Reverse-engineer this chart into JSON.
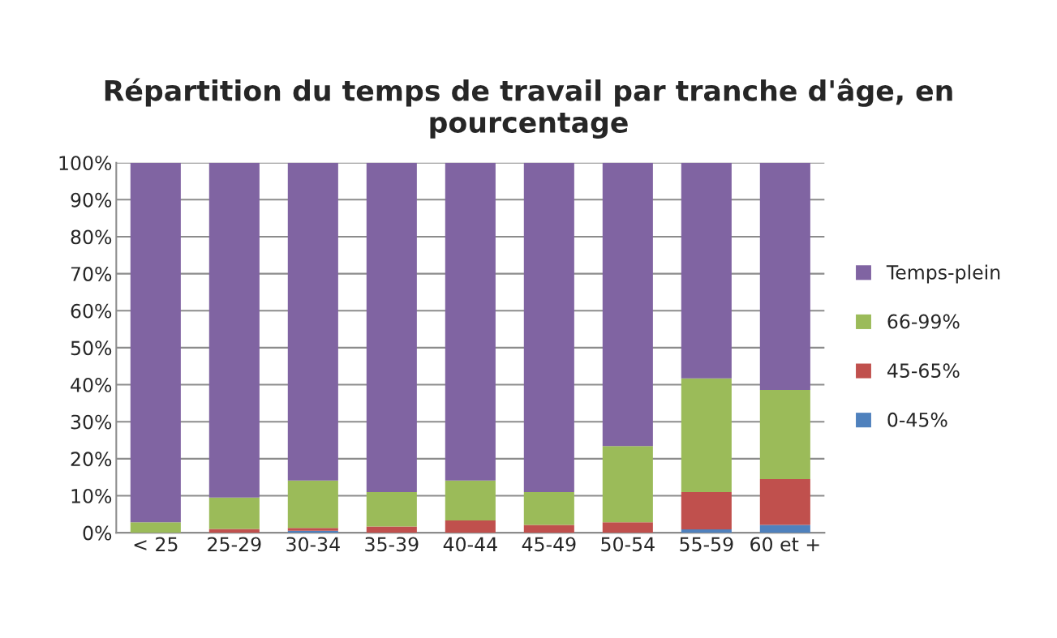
{
  "chart_data": {
    "type": "bar",
    "stacked": true,
    "title": "Répartition du temps de travail par tranche d'âge, en pourcentage",
    "categories": [
      "< 25",
      "25-29",
      "30-34",
      "35-39",
      "40-44",
      "45-49",
      "50-54",
      "55-59",
      "60 et +"
    ],
    "series": [
      {
        "name": "0-45%",
        "color": "#4f81bd",
        "values": [
          0,
          0,
          0.5,
          0,
          0,
          0,
          0,
          0.9,
          2.1
        ]
      },
      {
        "name": "45-65%",
        "color": "#c0504d",
        "values": [
          0,
          1.0,
          0.8,
          1.7,
          3.3,
          2.1,
          2.8,
          10.1,
          12.4
        ]
      },
      {
        "name": "66-99%",
        "color": "#9bbb59",
        "values": [
          2.8,
          8.5,
          12.8,
          9.3,
          10.8,
          8.9,
          20.6,
          30.7,
          24.1
        ]
      },
      {
        "name": "Temps-plein",
        "color": "#8064a2",
        "values": [
          97.2,
          90.5,
          85.9,
          89.0,
          85.9,
          89.0,
          76.6,
          58.3,
          61.4
        ]
      }
    ],
    "ylim": [
      0,
      100
    ],
    "yticks": [
      {
        "value": 0,
        "label": "0%"
      },
      {
        "value": 10,
        "label": "10%"
      },
      {
        "value": 20,
        "label": "20%"
      },
      {
        "value": 30,
        "label": "30%"
      },
      {
        "value": 40,
        "label": "40%"
      },
      {
        "value": 50,
        "label": "50%"
      },
      {
        "value": 60,
        "label": "60%"
      },
      {
        "value": 70,
        "label": "70%"
      },
      {
        "value": 80,
        "label": "80%"
      },
      {
        "value": 90,
        "label": "90%"
      },
      {
        "value": 100,
        "label": "100%"
      }
    ],
    "grid": "y",
    "legend": "right"
  }
}
